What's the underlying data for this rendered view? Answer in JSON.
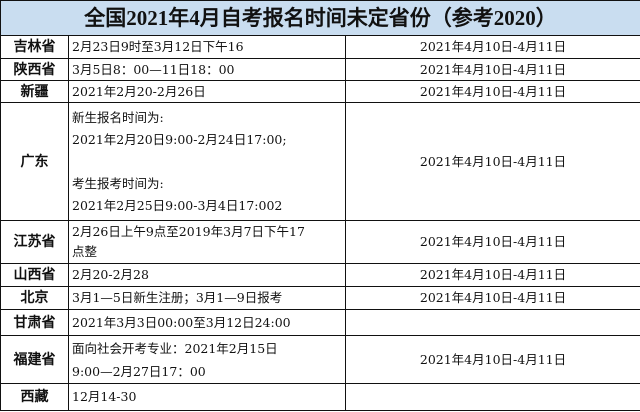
{
  "title": "全国2021年4月自考报名时间未定省份（参考2020）",
  "rows": [
    {
      "province": "吉林省",
      "registration": [
        "2月23日9时至3月12日下午16"
      ],
      "exam": "2021年4月10日-4月11日"
    },
    {
      "province": "陕西省",
      "registration": [
        "3月5日8：00—11日18：00"
      ],
      "exam": "2021年4月10日-4月11日"
    },
    {
      "province": "新疆",
      "registration": [
        "2021年2月20-2月26日"
      ],
      "exam": "2021年4月10日-4月11日"
    },
    {
      "province": "广东",
      "registration": [
        "新生报名时间为:",
        "2021年2月20日9:00-2月24日17:00;",
        "",
        "考生报考时间为:",
        "2021年2月25日9:00-3月4日17:002"
      ],
      "exam": "2021年4月10日-4月11日"
    },
    {
      "province": "江苏省",
      "registration": [
        "2月26日上午9点至2019年3月7日下午17",
        "点整"
      ],
      "exam": "2021年4月10日-4月11日"
    },
    {
      "province": "山西省",
      "registration": [
        "2月20-2月28"
      ],
      "exam": "2021年4月10日-4月11日"
    },
    {
      "province": "北京",
      "registration": [
        "3月1—5日新生注册；3月1—9日报考"
      ],
      "exam": "2021年4月10日-4月11日"
    },
    {
      "province": "甘肃省",
      "registration": [
        "2021年3月3日00:00至3月12日24:00"
      ],
      "exam": ""
    },
    {
      "province": "福建省",
      "registration": [
        "面向社会开考专业：2021年2月15日",
        "9:00—2月27日17：00"
      ],
      "exam": "2021年4月10日-4月11日"
    },
    {
      "province": "西藏",
      "registration": [
        "12月14-30"
      ],
      "exam": ""
    }
  ]
}
